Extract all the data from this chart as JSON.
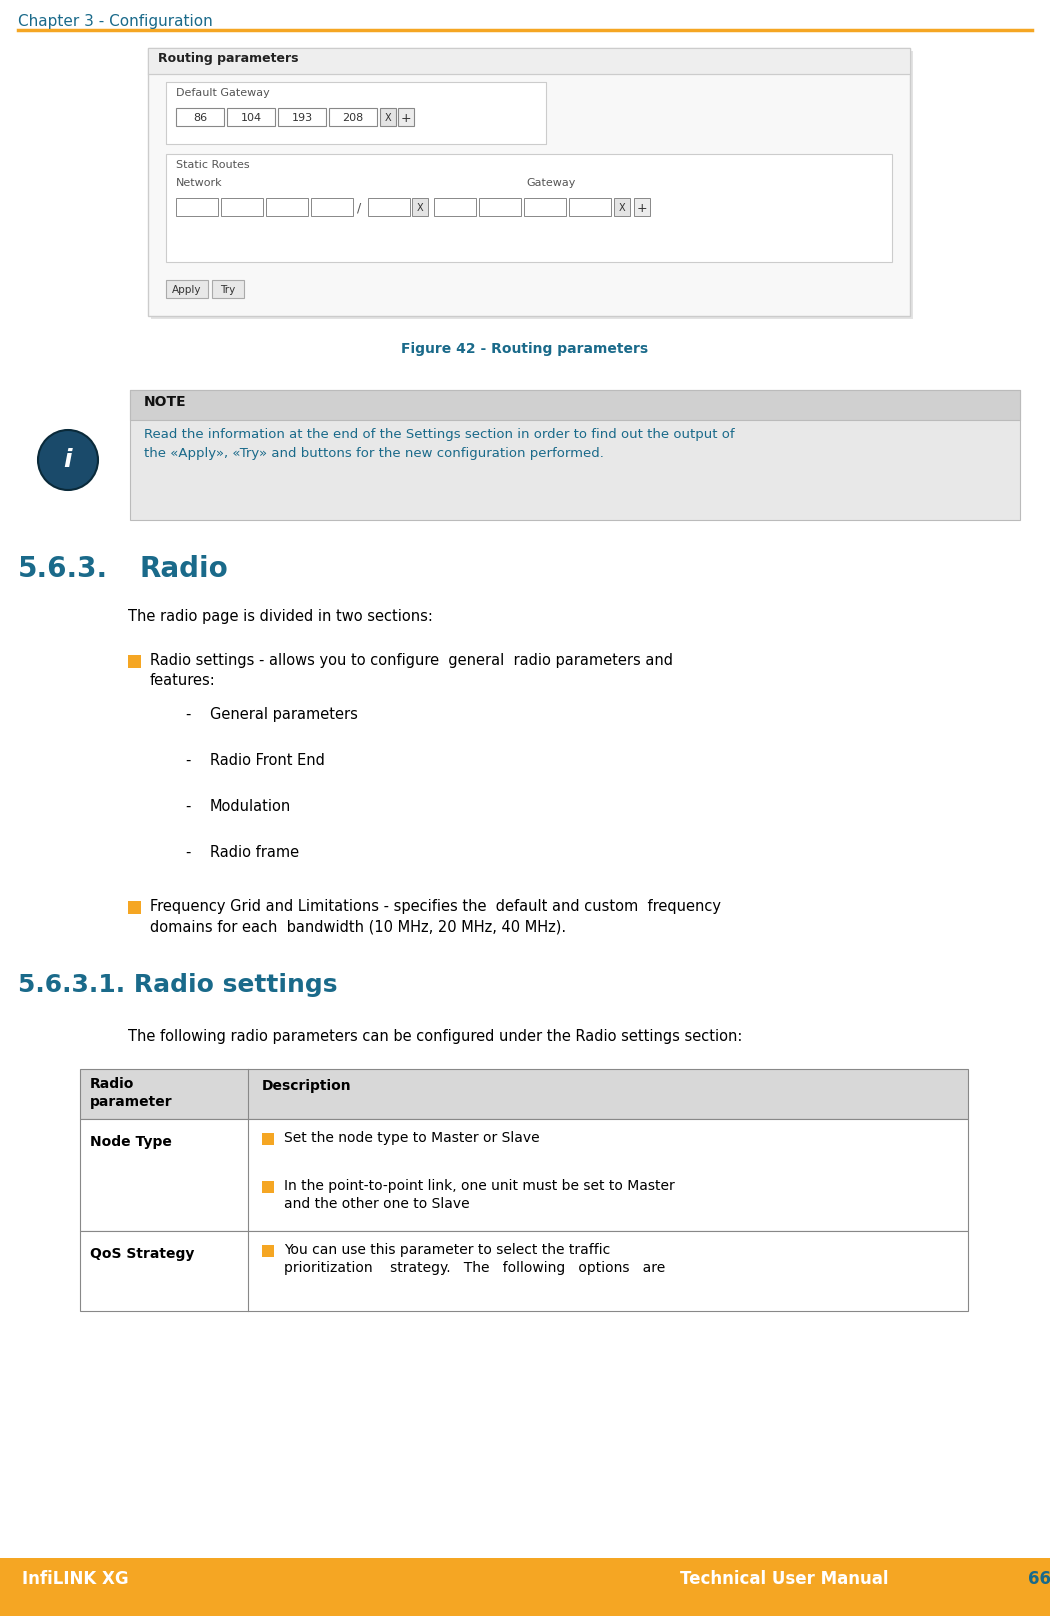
{
  "header_text": "Chapter 3 - Configuration",
  "header_color": "#1a6a8a",
  "header_line_color": "#f5a623",
  "footer_bg_color": "#f5a623",
  "footer_left": "InfiLINK XG",
  "footer_right": "Technical User Manual",
  "footer_page": "66",
  "footer_text_color": "#ffffff",
  "footer_page_color": "#1a6a8a",
  "figure_caption": "Figure 42 - Routing parameters",
  "figure_caption_color": "#1a6a8a",
  "note_bg_color": "#e8e8e8",
  "note_title": "NOTE",
  "note_text": "Read the information at the end of the Settings section in order to find out the output of\nthe «Apply», «Try» and buttons for the new configuration performed.",
  "note_text_color": "#1a6a8a",
  "note_icon_color": "#1a4a6a",
  "section_title": "5.6.3.",
  "section_name": "Radio",
  "section_title_color": "#1a6a8a",
  "section_intro": "The radio page is divided in two sections:",
  "bullet_color": "#f5a623",
  "bullet1_main_line1": "Radio settings - allows you to configure  general  radio parameters and",
  "bullet1_main_line2": "features:",
  "bullet1_subs": [
    "General parameters",
    "Radio Front End",
    "Modulation",
    "Radio frame"
  ],
  "bullet2_main_line1": "Frequency Grid and Limitations - specifies the  default and custom  frequency",
  "bullet2_main_line2": "domains for each  bandwidth (10 MHz, 20 MHz, 40 MHz).",
  "subsection_title": "5.6.3.1. Radio settings",
  "subsection_title_color": "#1a6a8a",
  "subsection_intro": "The following radio parameters can be configured under the Radio settings section:",
  "table_header_bg": "#d8d8d8",
  "table_col1_header": "Radio\nparameter",
  "table_col2_header": "Description",
  "table_row1_col1": "Node Type",
  "table_row1_bullets": [
    "Set the node type to Master or Slave",
    "In the point-to-point link, one unit must be set to Master\nand the other one to Slave"
  ],
  "table_row2_col1": "QoS Strategy",
  "table_row2_bullets": [
    "You can use this parameter to select the traffic\nprioritization    strategy.   The   following   options   are"
  ],
  "body_text_color": "#000000",
  "bg_color": "#ffffff"
}
